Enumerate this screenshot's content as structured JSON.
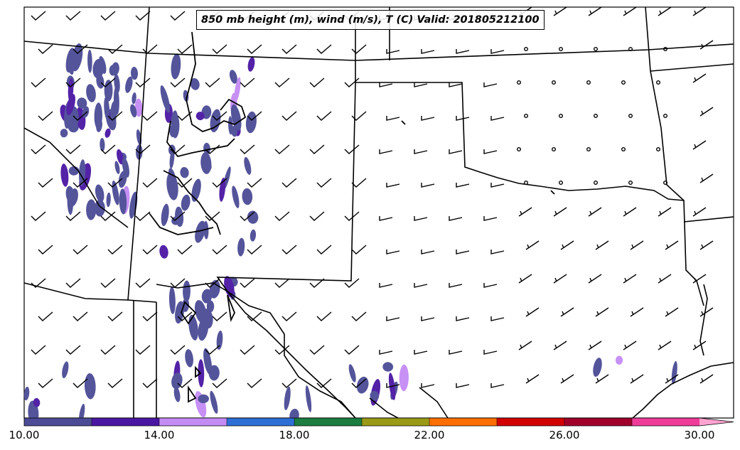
{
  "title": "850 mb height (m), wind (m/s), T (C) Valid: 201805212100",
  "colorbar": {
    "labels": [
      "10.00",
      "14.00",
      "18.00",
      "22.00",
      "26.00",
      "30.00"
    ],
    "colors": [
      "#4b4b96",
      "#4a17a3",
      "#c48bf5",
      "#2e6fd6",
      "#1b7d3f",
      "#9a9a17",
      "#ff6f00",
      "#d20000",
      "#a1002b",
      "#ef3c9a",
      "#ffa3d0"
    ]
  },
  "map": {
    "region": "Texas and surrounding states",
    "fill_color": "#4b4b96",
    "accent_colors": [
      "#4a17a3",
      "#c48bf5",
      "#2e6fd6",
      "#1b7d3f"
    ]
  }
}
